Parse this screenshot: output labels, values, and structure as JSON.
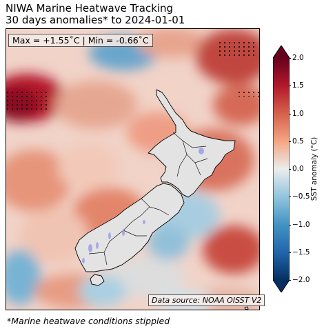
{
  "title": {
    "line1": "NIWA Marine Heatwave Tracking",
    "line2": "30 days anomalies* to 2024-01-01"
  },
  "stats": {
    "text": "Max = +1.55˚C | Min = -0.66˚C",
    "max_c": 1.55,
    "min_c": -0.66
  },
  "source": "Data source: NOAA OISST V2",
  "footnote": "*Marine heatwave conditions stippled",
  "colorbar": {
    "label": "SST anomaly (°C)",
    "ticks": [
      "2.0",
      "1.5",
      "1.0",
      "0.5",
      "0.0",
      "−0.5",
      "−1.0",
      "−1.5",
      "−2.0"
    ],
    "range": [
      -2.0,
      2.0
    ],
    "extend": "both",
    "colors": {
      "warm_max": "#67001f",
      "warm": "#d6604d",
      "neutral": "#e8e8e8",
      "cool": "#4393c3",
      "cool_max": "#053061"
    }
  },
  "map": {
    "land_color": "#e3e3e3",
    "lake_color": "#a8a8e8",
    "region": "New Zealand"
  }
}
